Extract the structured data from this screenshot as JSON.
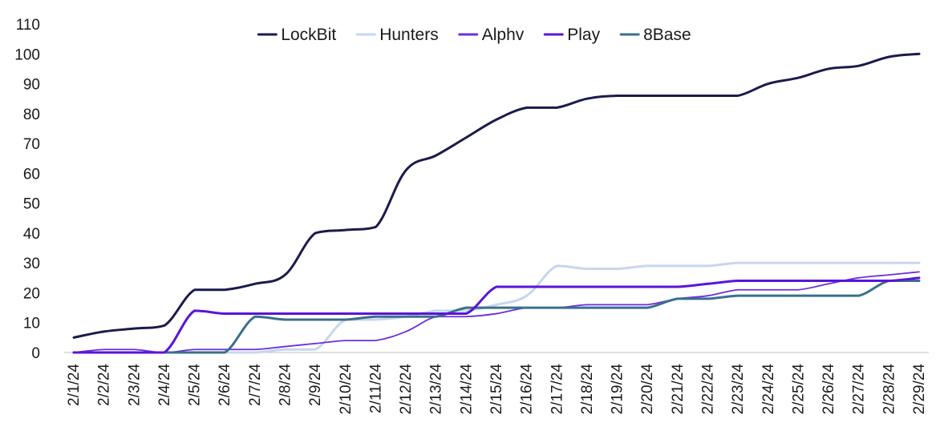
{
  "chart_data": {
    "type": "line",
    "title": "",
    "xlabel": "",
    "ylabel": "",
    "ylim": [
      0,
      110
    ],
    "yticks": [
      0,
      10,
      20,
      30,
      40,
      50,
      60,
      70,
      80,
      90,
      100,
      110
    ],
    "grid": false,
    "legend_position": "top-center",
    "categories": [
      "2/1/24",
      "2/2/24",
      "2/3/24",
      "2/4/24",
      "2/5/24",
      "2/6/24",
      "2/7/24",
      "2/8/24",
      "2/9/24",
      "2/10/24",
      "2/11/24",
      "2/12/24",
      "2/13/24",
      "2/14/24",
      "2/15/24",
      "2/16/24",
      "2/17/24",
      "2/18/24",
      "2/19/24",
      "2/20/24",
      "2/21/24",
      "2/22/24",
      "2/23/24",
      "2/24/24",
      "2/25/24",
      "2/26/24",
      "2/27/24",
      "2/28/24",
      "2/29/24"
    ],
    "series": [
      {
        "name": "LockBit",
        "color": "#1b1a4d",
        "width": 3,
        "values": [
          5,
          7,
          8,
          9,
          21,
          21,
          23,
          26,
          40,
          41,
          42,
          61,
          66,
          72,
          78,
          82,
          82,
          85,
          86,
          86,
          86,
          86,
          86,
          90,
          92,
          95,
          96,
          99,
          100
        ]
      },
      {
        "name": "Hunters",
        "color": "#c7d6ee",
        "width": 3,
        "values": [
          0,
          0,
          0,
          0,
          0,
          0,
          0,
          1,
          1,
          11,
          11,
          12,
          14,
          14,
          16,
          19,
          29,
          28,
          28,
          29,
          29,
          29,
          30,
          30,
          30,
          30,
          30,
          30,
          30
        ]
      },
      {
        "name": "Alphv",
        "color": "#6a2ee0",
        "width": 1.8,
        "values": [
          0,
          1,
          1,
          0,
          1,
          1,
          1,
          2,
          3,
          4,
          4,
          7,
          12,
          12,
          13,
          15,
          15,
          16,
          16,
          16,
          18,
          19,
          21,
          21,
          21,
          23,
          25,
          26,
          27
        ]
      },
      {
        "name": "Play",
        "color": "#5a14d8",
        "width": 3,
        "values": [
          0,
          0,
          0,
          0,
          14,
          13,
          13,
          13,
          13,
          13,
          13,
          13,
          13,
          13,
          22,
          22,
          22,
          22,
          22,
          22,
          22,
          23,
          24,
          24,
          24,
          24,
          24,
          24,
          25
        ]
      },
      {
        "name": "8Base",
        "color": "#3b6f8c",
        "width": 3,
        "values": [
          0,
          0,
          0,
          0,
          0,
          0,
          12,
          11,
          11,
          11,
          12,
          12,
          12,
          15,
          15,
          15,
          15,
          15,
          15,
          15,
          18,
          18,
          19,
          19,
          19,
          19,
          19,
          24,
          24
        ]
      }
    ]
  }
}
